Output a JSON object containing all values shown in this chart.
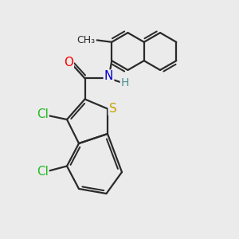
{
  "background_color": "#ebebeb",
  "bond_color": "#2a2a2a",
  "atom_colors": {
    "O": "#ff0000",
    "N": "#0000cd",
    "H": "#4a9090",
    "S": "#c8a000",
    "Cl": "#22bb22",
    "C": "#2a2a2a"
  },
  "bond_width": 1.6,
  "font_size_atoms": 11,
  "font_size_H": 10,
  "font_size_methyl": 9
}
